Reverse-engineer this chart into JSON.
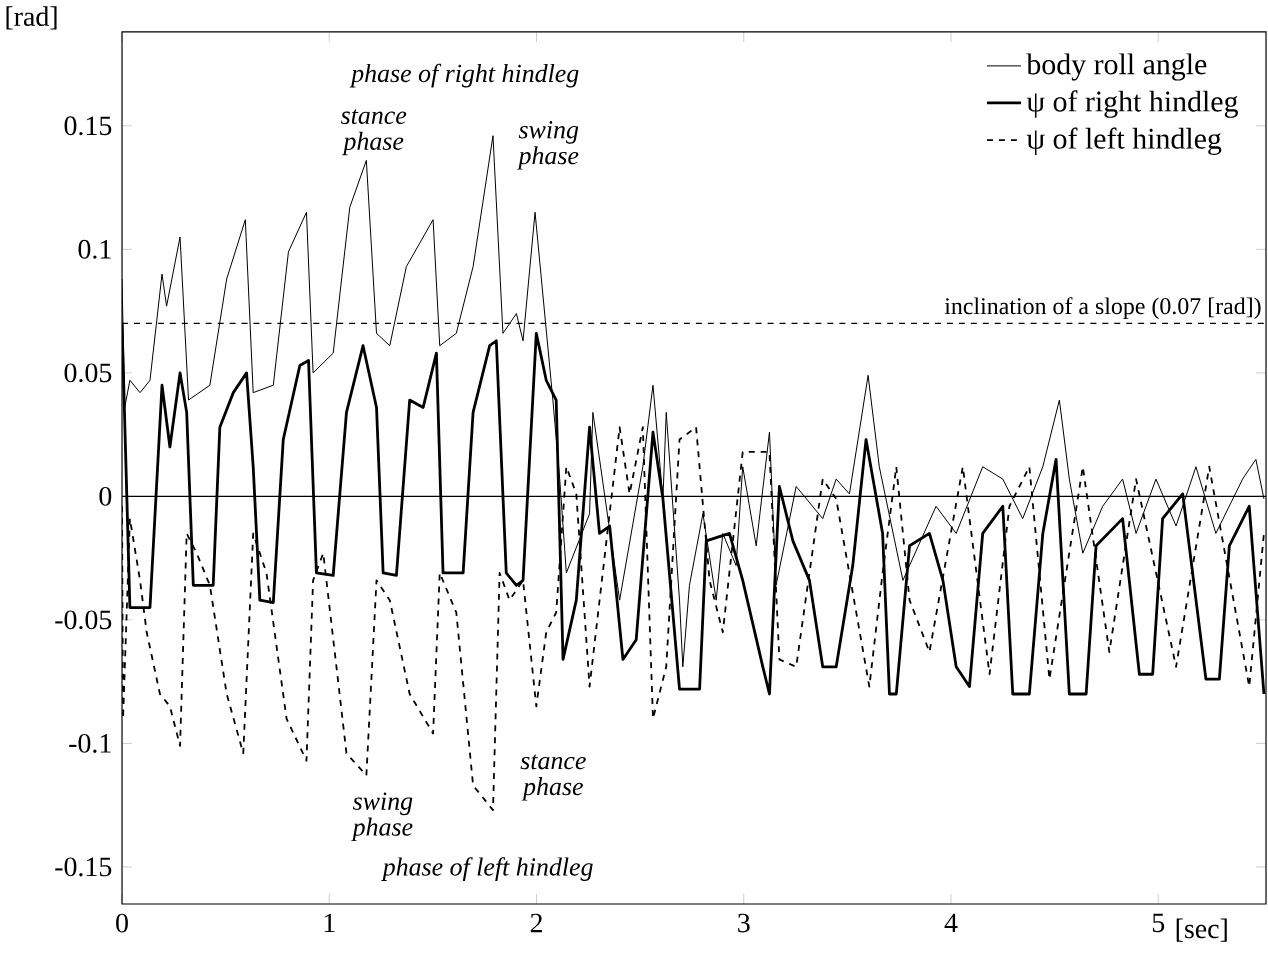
{
  "chart_data": {
    "type": "line",
    "xlabel": "[sec]",
    "ylabel": "[rad]",
    "xlim": [
      0,
      5.52
    ],
    "ylim": [
      -0.165,
      0.188
    ],
    "xticks": [
      0,
      1,
      2,
      3,
      4,
      5
    ],
    "yticks": [
      -0.15,
      -0.1,
      -0.05,
      0,
      0.05,
      0.1,
      0.15
    ],
    "legend": "top right",
    "marker": "none",
    "series": [
      {
        "name": "body roll angle",
        "color": "#000000",
        "line_style": "solid",
        "x": [
          0.0,
          0.013,
          0.038,
          0.087,
          0.135,
          0.193,
          0.215,
          0.28,
          0.321,
          0.424,
          0.505,
          0.595,
          0.633,
          0.73,
          0.803,
          0.89,
          0.922,
          1.019,
          1.099,
          1.179,
          1.228,
          1.292,
          1.372,
          1.501,
          1.533,
          1.613,
          1.694,
          1.79,
          1.838,
          1.903,
          1.935,
          1.993,
          2.079,
          2.112,
          2.144,
          2.256,
          2.272,
          2.401,
          2.513,
          2.562,
          2.61,
          2.626,
          2.69,
          2.706,
          2.738,
          2.803,
          2.867,
          2.899,
          2.963,
          2.995,
          3.06,
          3.124,
          3.156,
          3.253,
          3.381,
          3.446,
          3.51,
          3.6,
          3.654,
          3.768,
          3.928,
          4.025,
          4.153,
          4.25,
          4.346,
          4.443,
          4.523,
          4.571,
          4.636,
          4.732,
          4.828,
          4.893,
          4.989,
          5.086,
          5.182,
          5.278,
          5.407,
          5.471,
          5.51
        ],
        "values": [
          0.088,
          0.036,
          0.047,
          0.042,
          0.047,
          0.09,
          0.077,
          0.105,
          0.039,
          0.045,
          0.088,
          0.112,
          0.042,
          0.045,
          0.099,
          0.115,
          0.05,
          0.058,
          0.117,
          0.136,
          0.066,
          0.061,
          0.093,
          0.112,
          0.061,
          0.066,
          0.093,
          0.146,
          0.066,
          0.074,
          0.063,
          0.115,
          0.039,
          0.007,
          -0.031,
          -0.007,
          0.034,
          -0.042,
          0.012,
          0.045,
          -0.001,
          0.034,
          -0.042,
          -0.069,
          -0.036,
          -0.007,
          -0.042,
          -0.015,
          -0.028,
          0.012,
          -0.02,
          0.026,
          -0.036,
          0.004,
          -0.009,
          0.007,
          0.001,
          0.049,
          0.012,
          -0.034,
          -0.004,
          -0.015,
          0.012,
          0.007,
          -0.009,
          0.012,
          0.039,
          0.007,
          -0.023,
          -0.004,
          0.007,
          -0.015,
          0.007,
          -0.012,
          0.012,
          -0.015,
          0.007,
          0.015,
          -0.001
        ]
      },
      {
        "name": "ψ of right hindleg",
        "color": "#000000",
        "line_style": "solid",
        "x": [
          0.0,
          0.038,
          0.135,
          0.193,
          0.231,
          0.28,
          0.312,
          0.344,
          0.44,
          0.472,
          0.537,
          0.601,
          0.633,
          0.665,
          0.73,
          0.778,
          0.858,
          0.9,
          0.938,
          1.019,
          1.083,
          1.163,
          1.228,
          1.26,
          1.324,
          1.388,
          1.453,
          1.517,
          1.549,
          1.646,
          1.694,
          1.774,
          1.806,
          1.854,
          1.903,
          1.935,
          1.999,
          2.047,
          2.095,
          2.128,
          2.192,
          2.256,
          2.304,
          2.353,
          2.417,
          2.481,
          2.562,
          2.61,
          2.69,
          2.787,
          2.819,
          2.931,
          2.995,
          3.092,
          3.124,
          3.172,
          3.237,
          3.317,
          3.381,
          3.446,
          3.526,
          3.59,
          3.67,
          3.703,
          3.736,
          3.8,
          3.896,
          3.961,
          4.025,
          4.089,
          4.153,
          4.25,
          4.298,
          4.378,
          4.443,
          4.507,
          4.571,
          4.652,
          4.7,
          4.828,
          4.909,
          4.973,
          5.021,
          5.118,
          5.23,
          5.295,
          5.343,
          5.439,
          5.51
        ],
        "values": [
          0.07,
          -0.045,
          -0.045,
          0.045,
          0.02,
          0.05,
          0.034,
          -0.036,
          -0.036,
          0.028,
          0.042,
          0.05,
          0.012,
          -0.042,
          -0.043,
          0.023,
          0.053,
          0.055,
          -0.031,
          -0.032,
          0.034,
          0.061,
          0.036,
          -0.031,
          -0.032,
          0.039,
          0.036,
          0.058,
          -0.031,
          -0.031,
          0.034,
          0.061,
          0.063,
          -0.031,
          -0.036,
          -0.034,
          0.066,
          0.047,
          0.039,
          -0.066,
          -0.042,
          0.028,
          -0.015,
          -0.012,
          -0.066,
          -0.058,
          0.026,
          -0.001,
          -0.078,
          -0.078,
          -0.018,
          -0.015,
          -0.034,
          -0.069,
          -0.08,
          0.004,
          -0.018,
          -0.034,
          -0.069,
          -0.069,
          -0.028,
          0.023,
          -0.015,
          -0.08,
          -0.08,
          -0.02,
          -0.015,
          -0.034,
          -0.069,
          -0.077,
          -0.015,
          -0.004,
          -0.08,
          -0.08,
          -0.015,
          0.015,
          -0.08,
          -0.08,
          -0.02,
          -0.009,
          -0.072,
          -0.072,
          -0.009,
          0.001,
          -0.074,
          -0.074,
          -0.02,
          -0.004,
          -0.08
        ]
      },
      {
        "name": "ψ of left hindleg",
        "color": "#000000",
        "line_style": "dashed",
        "x": [
          0.0,
          0.005,
          0.038,
          0.087,
          0.119,
          0.183,
          0.231,
          0.28,
          0.312,
          0.36,
          0.424,
          0.505,
          0.585,
          0.633,
          0.697,
          0.794,
          0.89,
          0.922,
          0.971,
          1.083,
          1.179,
          1.228,
          1.292,
          1.388,
          1.501,
          1.533,
          1.613,
          1.694,
          1.79,
          1.822,
          1.87,
          1.935,
          1.999,
          2.047,
          2.095,
          2.144,
          2.192,
          2.256,
          2.401,
          2.449,
          2.513,
          2.562,
          2.626,
          2.69,
          2.77,
          2.835,
          2.899,
          2.995,
          3.124,
          3.172,
          3.253,
          3.381,
          3.446,
          3.606,
          3.67,
          3.736,
          3.8,
          3.896,
          4.057,
          4.186,
          4.282,
          4.378,
          4.475,
          4.636,
          4.764,
          4.893,
          5.086,
          5.246,
          5.439,
          5.51
        ],
        "values": [
          -0.004,
          -0.09,
          -0.009,
          -0.034,
          -0.055,
          -0.08,
          -0.085,
          -0.101,
          -0.015,
          -0.023,
          -0.036,
          -0.08,
          -0.104,
          -0.015,
          -0.031,
          -0.09,
          -0.107,
          -0.034,
          -0.023,
          -0.104,
          -0.113,
          -0.034,
          -0.042,
          -0.08,
          -0.096,
          -0.031,
          -0.047,
          -0.117,
          -0.127,
          -0.031,
          -0.042,
          -0.034,
          -0.085,
          -0.055,
          -0.047,
          0.012,
          0.001,
          -0.077,
          0.028,
          0.001,
          0.028,
          -0.09,
          -0.069,
          0.023,
          0.028,
          -0.034,
          -0.055,
          0.018,
          0.018,
          -0.066,
          -0.069,
          0.007,
          -0.001,
          -0.077,
          -0.031,
          0.012,
          -0.042,
          -0.063,
          0.012,
          -0.072,
          -0.004,
          0.012,
          -0.074,
          0.012,
          -0.063,
          0.007,
          -0.069,
          0.012,
          -0.077,
          -0.015
        ]
      }
    ],
    "ref_lines": [
      {
        "axis": "y",
        "value": 0.07,
        "label": "inclination of a slope (0.07 [rad])",
        "line_style": "dashed",
        "color": "#000000"
      },
      {
        "axis": "y",
        "value": 0,
        "line_style": "solid",
        "color": "#000000"
      }
    ],
    "annotations": [
      "phase of right hindleg",
      "stance phase",
      "swing phase",
      "swing phase",
      "stance phase",
      "phase of left hindleg"
    ]
  }
}
